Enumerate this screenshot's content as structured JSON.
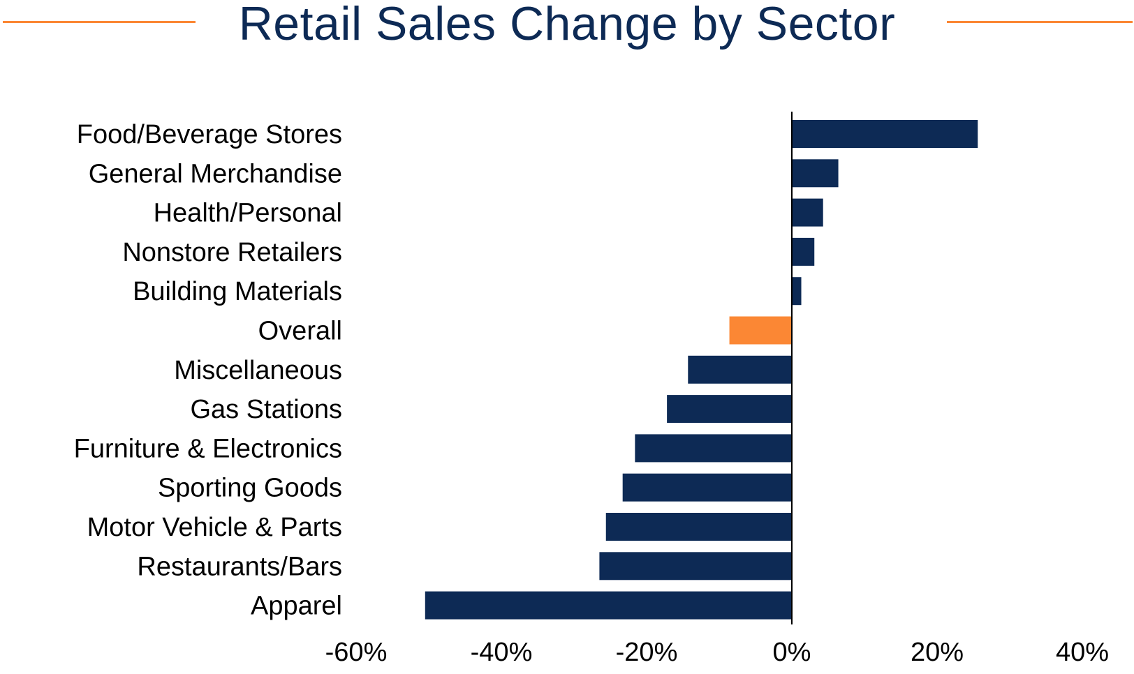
{
  "colors": {
    "bar": "#0d2a55",
    "highlight": "#fb8734",
    "title": "#0d2a55",
    "accent_line": "#fb8734",
    "axis": "#000000"
  },
  "chart_data": {
    "type": "bar",
    "orientation": "horizontal",
    "title": "Retail Sales Change by Sector",
    "xlabel": "",
    "ylabel": "",
    "categories": [
      "Food/Beverage Stores",
      "General Merchandise",
      "Health/Personal",
      "Nonstore Retailers",
      "Building Materials",
      "Overall",
      "Miscellaneous",
      "Gas Stations",
      "Furniture & Electronics",
      "Sporting Goods",
      "Motor Vehicle & Parts",
      "Restaurants/Bars",
      "Apparel"
    ],
    "values": [
      25.6,
      6.4,
      4.3,
      3.1,
      1.3,
      -8.6,
      -14.3,
      -17.2,
      -21.6,
      -23.3,
      -25.6,
      -26.5,
      -50.5
    ],
    "highlight_category": "Overall",
    "xlim": [
      -60,
      40
    ],
    "x_ticks": [
      -60,
      -40,
      -20,
      0,
      20,
      40
    ],
    "x_tick_labels": [
      "-60%",
      "-40%",
      "-20%",
      "0%",
      "20%",
      "40%"
    ],
    "grid": false,
    "legend": false
  }
}
